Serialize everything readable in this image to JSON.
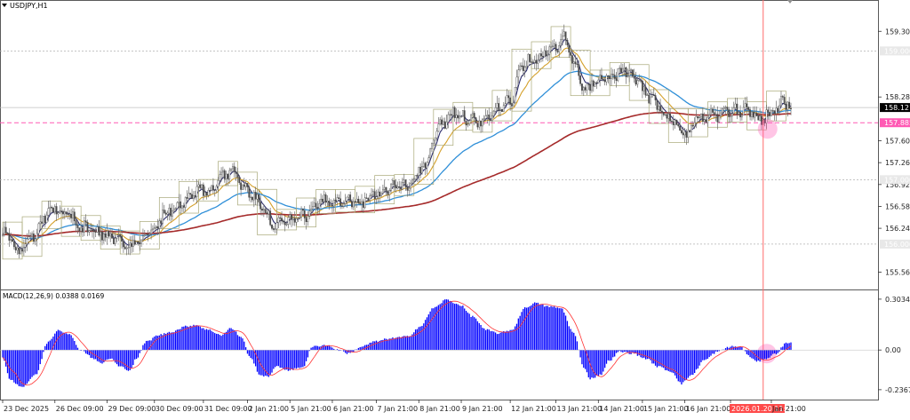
{
  "chart_data": [
    {
      "type": "candlestick",
      "symbol_label": "USDJPY,H1",
      "y_ticks": [
        "159.305",
        "158.285",
        "157.605",
        "157.265",
        "156.925",
        "156.585",
        "156.245",
        "155.565"
      ],
      "y_tick_values": [
        159.305,
        158.285,
        157.605,
        157.265,
        156.925,
        156.585,
        156.245,
        155.565
      ],
      "ylim": [
        155.35,
        159.75
      ],
      "level_lines": [
        {
          "label": "159.000",
          "value": 159.0,
          "color": "#b0b0b0"
        },
        {
          "label": "157.000",
          "value": 157.0,
          "color": "#b0b0b0"
        },
        {
          "label": "156.000",
          "value": 156.0,
          "color": "#b0b0b0"
        }
      ],
      "price_tags": [
        {
          "label": "158.121",
          "value": 158.121,
          "color": "#000000"
        },
        {
          "label": "157.885",
          "value": 157.885,
          "color": "#ff5ab4"
        }
      ],
      "x_ticks": [
        "23 Dec 2025",
        "26 Dec 09:00",
        "29 Dec 09:00",
        "30 Dec 09:00",
        "31 Dec 09:00",
        "2 Jan 21:00",
        "5 Jan 21:00",
        "6 Jan 21:00",
        "7 Jan 21:00",
        "8 Jan 21:00",
        "9 Jan 21:00",
        "12 Jan 21:00",
        "13 Jan 21:00",
        "14 Jan 21:00",
        "15 Jan 21:00",
        "16 Jan 21:00",
        "2026.01.20 11:00",
        "Jan 21:00"
      ],
      "x_tick_positions": [
        0,
        32,
        64,
        93,
        123,
        150,
        176,
        202,
        229,
        255,
        281,
        311,
        339,
        365,
        392,
        418,
        446,
        471
      ],
      "x_highlight_index": 16,
      "n_bars": 484,
      "vertical_marker_bar": 466,
      "ema_fast_color": "#d4a02a",
      "ema_mid_color": "#2f8fd8",
      "ema_slow_color": "#a52a2a",
      "highlight_color": "#ff5ab4",
      "close_anchors": [
        [
          0,
          156.2
        ],
        [
          10,
          155.9
        ],
        [
          18,
          156.15
        ],
        [
          30,
          156.55
        ],
        [
          40,
          156.45
        ],
        [
          50,
          156.25
        ],
        [
          62,
          156.15
        ],
        [
          72,
          156.05
        ],
        [
          80,
          156.0
        ],
        [
          90,
          156.15
        ],
        [
          100,
          156.5
        ],
        [
          110,
          156.65
        ],
        [
          120,
          156.85
        ],
        [
          128,
          156.85
        ],
        [
          136,
          157.05
        ],
        [
          140,
          157.2
        ],
        [
          148,
          156.85
        ],
        [
          158,
          156.65
        ],
        [
          166,
          156.3
        ],
        [
          176,
          156.35
        ],
        [
          186,
          156.45
        ],
        [
          196,
          156.65
        ],
        [
          208,
          156.7
        ],
        [
          218,
          156.65
        ],
        [
          230,
          156.8
        ],
        [
          240,
          156.9
        ],
        [
          248,
          156.9
        ],
        [
          258,
          157.2
        ],
        [
          268,
          157.85
        ],
        [
          276,
          158.05
        ],
        [
          286,
          157.95
        ],
        [
          294,
          157.9
        ],
        [
          304,
          158.1
        ],
        [
          312,
          158.25
        ],
        [
          318,
          158.8
        ],
        [
          326,
          158.9
        ],
        [
          336,
          159.0
        ],
        [
          344,
          159.2
        ],
        [
          350,
          158.8
        ],
        [
          356,
          158.4
        ],
        [
          364,
          158.55
        ],
        [
          372,
          158.6
        ],
        [
          380,
          158.7
        ],
        [
          388,
          158.55
        ],
        [
          396,
          158.3
        ],
        [
          404,
          158.05
        ],
        [
          410,
          157.9
        ],
        [
          418,
          157.7
        ],
        [
          426,
          157.95
        ],
        [
          436,
          158.0
        ],
        [
          446,
          158.05
        ],
        [
          456,
          158.1
        ],
        [
          464,
          157.95
        ],
        [
          472,
          158.05
        ],
        [
          478,
          158.2
        ],
        [
          484,
          158.12
        ]
      ]
    },
    {
      "type": "bar",
      "indicator_label": "MACD(12,26,9) 0.0388 0.0169",
      "y_ticks": [
        "0.3034",
        "0.00",
        "-0.2367"
      ],
      "y_tick_values": [
        0.3034,
        0.0,
        -0.2367
      ],
      "ylim": [
        -0.285,
        0.34
      ],
      "bar_color": "#0000ff",
      "signal_color": "#ff3333",
      "macd_anchors": [
        [
          0,
          -0.05
        ],
        [
          5,
          -0.18
        ],
        [
          12,
          -0.22
        ],
        [
          20,
          -0.15
        ],
        [
          28,
          0.05
        ],
        [
          34,
          0.12
        ],
        [
          40,
          0.1
        ],
        [
          48,
          0.0
        ],
        [
          56,
          -0.05
        ],
        [
          60,
          -0.08
        ],
        [
          66,
          -0.05
        ],
        [
          72,
          -0.1
        ],
        [
          78,
          -0.12
        ],
        [
          82,
          -0.05
        ],
        [
          88,
          0.05
        ],
        [
          96,
          0.09
        ],
        [
          104,
          0.11
        ],
        [
          112,
          0.14
        ],
        [
          118,
          0.15
        ],
        [
          126,
          0.12
        ],
        [
          134,
          0.09
        ],
        [
          140,
          0.13
        ],
        [
          146,
          0.08
        ],
        [
          152,
          -0.05
        ],
        [
          158,
          -0.15
        ],
        [
          162,
          -0.16
        ],
        [
          168,
          -0.1
        ],
        [
          176,
          -0.12
        ],
        [
          184,
          -0.1
        ],
        [
          190,
          0.02
        ],
        [
          198,
          0.03
        ],
        [
          206,
          0.0
        ],
        [
          212,
          -0.02
        ],
        [
          220,
          0.02
        ],
        [
          228,
          0.05
        ],
        [
          238,
          0.07
        ],
        [
          248,
          0.08
        ],
        [
          256,
          0.14
        ],
        [
          264,
          0.25
        ],
        [
          272,
          0.3
        ],
        [
          280,
          0.27
        ],
        [
          288,
          0.2
        ],
        [
          296,
          0.12
        ],
        [
          304,
          0.1
        ],
        [
          312,
          0.12
        ],
        [
          320,
          0.25
        ],
        [
          326,
          0.28
        ],
        [
          334,
          0.26
        ],
        [
          342,
          0.25
        ],
        [
          350,
          0.1
        ],
        [
          356,
          -0.1
        ],
        [
          360,
          -0.17
        ],
        [
          366,
          -0.15
        ],
        [
          372,
          -0.06
        ],
        [
          378,
          -0.01
        ],
        [
          386,
          -0.02
        ],
        [
          394,
          -0.05
        ],
        [
          402,
          -0.1
        ],
        [
          410,
          -0.13
        ],
        [
          416,
          -0.2
        ],
        [
          422,
          -0.15
        ],
        [
          430,
          -0.06
        ],
        [
          438,
          -0.01
        ],
        [
          446,
          0.02
        ],
        [
          452,
          0.02
        ],
        [
          458,
          -0.04
        ],
        [
          462,
          -0.07
        ],
        [
          468,
          -0.05
        ],
        [
          474,
          -0.02
        ],
        [
          480,
          0.04
        ],
        [
          484,
          0.05
        ]
      ]
    }
  ]
}
